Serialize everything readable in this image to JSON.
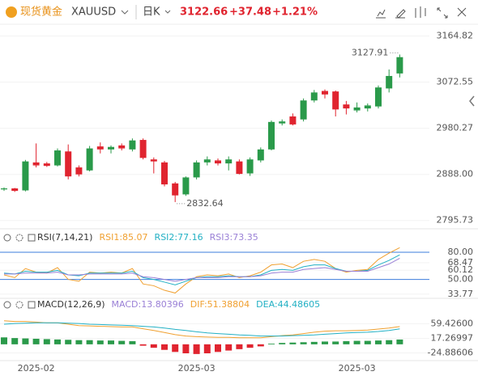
{
  "header": {
    "name": "现货黄金",
    "symbol": "XAUUSD",
    "period": "日K",
    "change": "+37.48",
    "change_pct": "+1.21%"
  },
  "chart_data": [
    {
      "type": "candlestick",
      "up_color": "#2a9a4a",
      "down_color": "#e0242f",
      "categories": [
        null,
        null,
        null,
        "2025-02",
        null,
        null,
        null,
        null,
        null,
        null,
        null,
        null,
        null,
        null,
        null,
        null,
        null,
        null,
        "2025-03",
        null,
        null,
        null,
        null,
        null,
        null,
        null,
        null,
        null,
        null,
        null,
        null,
        null,
        null,
        "2025-03",
        null,
        null,
        null,
        null
      ],
      "open": [
        2858,
        2860,
        2856,
        2912,
        2910,
        2906,
        2934,
        2902,
        2896,
        2944,
        2938,
        2946,
        2938,
        2957,
        2918,
        2912,
        2870,
        2848,
        2882,
        2912,
        2916,
        2910,
        2914,
        2890,
        2916,
        2938,
        2990,
        3004,
        2998,
        3036,
        3055,
        3054,
        3028,
        3016,
        3020,
        3024,
        3060,
        3090
      ],
      "high": [
        2862,
        2861,
        2917,
        2950,
        2913,
        2940,
        2948,
        2906,
        2945,
        2952,
        2946,
        2950,
        2960,
        2960,
        2922,
        2915,
        2873,
        2884,
        2916,
        2924,
        2920,
        2924,
        2918,
        2922,
        2942,
        2996,
        2998,
        3010,
        3040,
        3057,
        3058,
        3056,
        3035,
        3032,
        3030,
        3066,
        3098,
        3127.91
      ],
      "low": [
        2855,
        2853,
        2854,
        2902,
        2903,
        2904,
        2878,
        2884,
        2894,
        2930,
        2930,
        2936,
        2934,
        2918,
        2890,
        2864,
        2832.64,
        2845,
        2878,
        2906,
        2906,
        2896,
        2888,
        2885,
        2912,
        2936,
        2986,
        2986,
        2994,
        3032,
        3040,
        3004,
        3008,
        3012,
        3014,
        3020,
        3052,
        3082
      ],
      "close": [
        2860,
        2855,
        2914,
        2906,
        2905,
        2936,
        2884,
        2888,
        2940,
        2938,
        2943,
        2940,
        2956,
        2921,
        2914,
        2868,
        2846,
        2882,
        2912,
        2918,
        2910,
        2918,
        2889,
        2918,
        2938,
        2993,
        2994,
        2988,
        3036,
        3052,
        3048,
        3018,
        3020,
        3022,
        3026,
        3062,
        3085,
        3122.66
      ],
      "ylim": [
        2784,
        3182
      ],
      "yticks": [
        3164.82,
        3072.55,
        2980.27,
        {
          "value": 2888,
          "label": "2888.00"
        },
        2795.73
      ]
    },
    {
      "type": "line",
      "title": "RSI(7,14,21)",
      "label_separator": ":",
      "ylim": [
        30,
        88
      ],
      "yticks": [
        {
          "value": 80,
          "label": "80.00",
          "line": "#3b7ddd"
        },
        {
          "value": 68.47,
          "label": "68.47"
        },
        {
          "value": 60.12,
          "label": "60.12"
        },
        {
          "value": 50,
          "label": "50.00",
          "line": "#3b7ddd"
        },
        {
          "value": 33.77,
          "label": "33.77"
        }
      ],
      "series": [
        {
          "name": "RSI1",
          "color": "#f0a030",
          "values": [
            55,
            52,
            62,
            58,
            57,
            63,
            50,
            48,
            58,
            57,
            58,
            57,
            62,
            45,
            43,
            38,
            35,
            45,
            53,
            55,
            54,
            56,
            52,
            54,
            58,
            66,
            67,
            63,
            70,
            72,
            70,
            62,
            58,
            60,
            61,
            72,
            79,
            85.07
          ]
        },
        {
          "name": "RSI2",
          "color": "#22b0c4",
          "values": [
            57,
            56,
            59,
            58,
            58,
            60,
            55,
            54,
            57,
            57,
            57,
            57,
            59,
            52,
            50,
            47,
            44,
            48,
            52,
            53,
            53,
            54,
            53,
            53,
            55,
            60,
            61,
            60,
            64,
            66,
            66,
            62,
            59,
            59,
            60,
            66,
            71,
            77.16
          ]
        },
        {
          "name": "RSI3",
          "color": "#9a80d6",
          "values": [
            56,
            56,
            57,
            57,
            57,
            58,
            55,
            55,
            56,
            56,
            56,
            56,
            57,
            53,
            52,
            50,
            48,
            50,
            52,
            52,
            52,
            53,
            53,
            53,
            54,
            57,
            58,
            58,
            61,
            62,
            63,
            61,
            59,
            59,
            59,
            63,
            67,
            73.35
          ]
        }
      ]
    },
    {
      "type": "macd",
      "title": "MACD(12,26,9)",
      "label_separator": ":",
      "ylim": [
        -47,
        93
      ],
      "yticks": [
        {
          "value": 59.426,
          "label": "59.42600"
        },
        17.26997,
        {
          "value": -24.88606,
          "label": "-24.88606"
        }
      ],
      "series": [
        {
          "name": "MACD",
          "type": "bar",
          "color": "#9a80d6",
          "up_color": "#2a9a4a",
          "down_color": "#e0242f",
          "values": [
            20,
            18,
            17,
            16,
            15,
            14,
            13,
            12,
            12,
            11,
            11,
            10,
            9,
            -4,
            -10,
            -16,
            -22,
            -26,
            -28,
            -26,
            -22,
            -18,
            -14,
            -10,
            -6,
            2,
            4,
            5,
            6,
            7,
            8,
            8,
            9,
            10,
            10,
            11,
            12,
            13.80396
          ]
        },
        {
          "name": "DIF",
          "type": "line",
          "color": "#f0a030",
          "values": [
            68,
            66,
            66,
            64,
            62,
            62,
            58,
            54,
            53,
            52,
            51,
            50,
            50,
            45,
            40,
            34,
            28,
            24,
            22,
            21,
            20,
            20,
            19,
            19,
            19,
            22,
            25,
            27,
            31,
            35,
            38,
            39,
            39,
            40,
            41,
            44,
            47,
            51.38804
          ]
        },
        {
          "name": "DEA",
          "type": "line",
          "color": "#22b0c4",
          "values": [
            58,
            60,
            61,
            62,
            62,
            62,
            61,
            60,
            58,
            57,
            56,
            55,
            54,
            52,
            50,
            47,
            43,
            40,
            36,
            33,
            31,
            29,
            27,
            26,
            24,
            24,
            24,
            25,
            26,
            27,
            29,
            31,
            33,
            34,
            35,
            37,
            40,
            44.48605
          ]
        }
      ]
    }
  ]
}
